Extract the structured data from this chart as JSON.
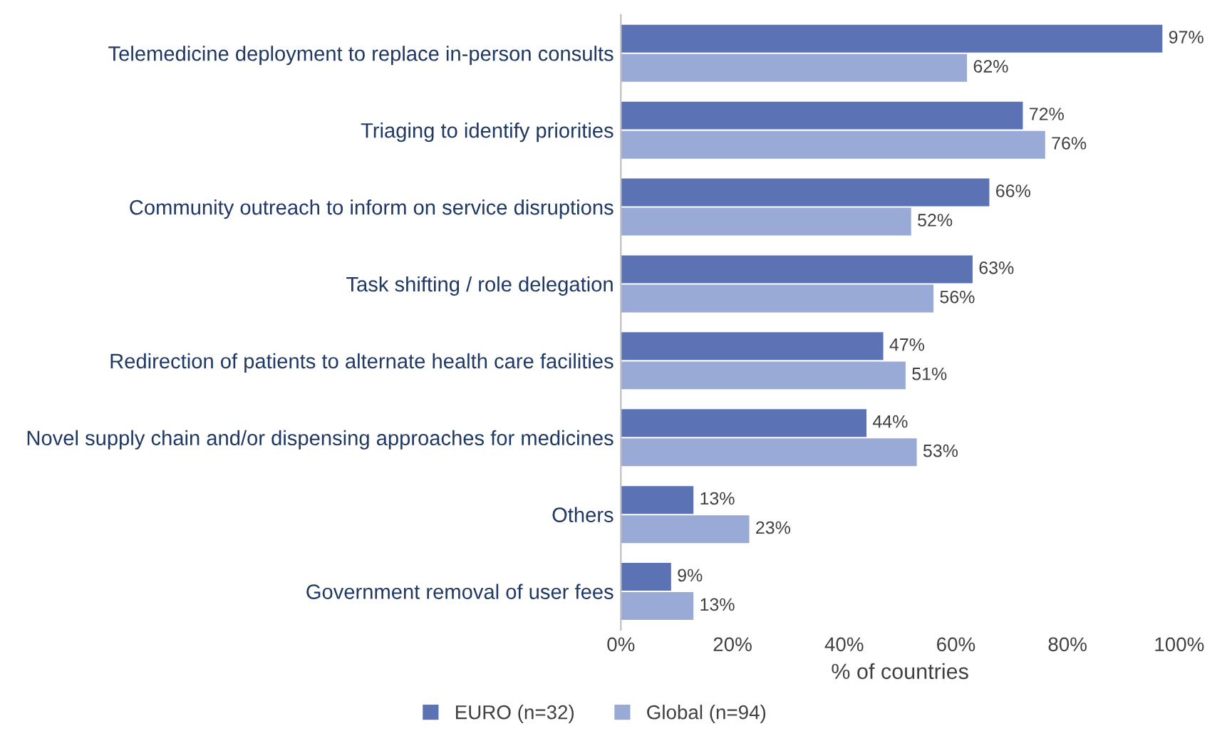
{
  "chart_data": {
    "type": "bar",
    "orientation": "horizontal",
    "xlabel": "% of countries",
    "categories": [
      "Telemedicine deployment to replace in-person consults",
      "Triaging to identify priorities",
      "Community outreach to inform on service disruptions",
      "Task shifting / role delegation",
      "Redirection of patients to alternate health care facilities",
      "Novel supply chain and/or dispensing approaches for medicines",
      "Others",
      "Government removal of user fees"
    ],
    "series": [
      {
        "name": "EURO (n=32)",
        "color": "#5b73b5",
        "values": [
          97,
          72,
          66,
          63,
          47,
          44,
          13,
          9
        ],
        "value_labels": [
          "97%",
          "72%",
          "66%",
          "63%",
          "47%",
          "44%",
          "13%",
          "9%"
        ]
      },
      {
        "name": "Global (n=94)",
        "color": "#9aaad6",
        "values": [
          62,
          76,
          52,
          56,
          51,
          53,
          23,
          13
        ],
        "value_labels": [
          "62%",
          "76%",
          "52%",
          "56%",
          "51%",
          "53%",
          "23%",
          "13%"
        ]
      }
    ],
    "xlim": [
      0,
      100
    ],
    "xticks": [
      {
        "value": 0,
        "label": "0%"
      },
      {
        "value": 20,
        "label": "20%"
      },
      {
        "value": 40,
        "label": "40%"
      },
      {
        "value": 60,
        "label": "60%"
      },
      {
        "value": 80,
        "label": "80%"
      },
      {
        "value": 100,
        "label": "100%"
      }
    ],
    "grid": false,
    "legend": "bottom left"
  }
}
